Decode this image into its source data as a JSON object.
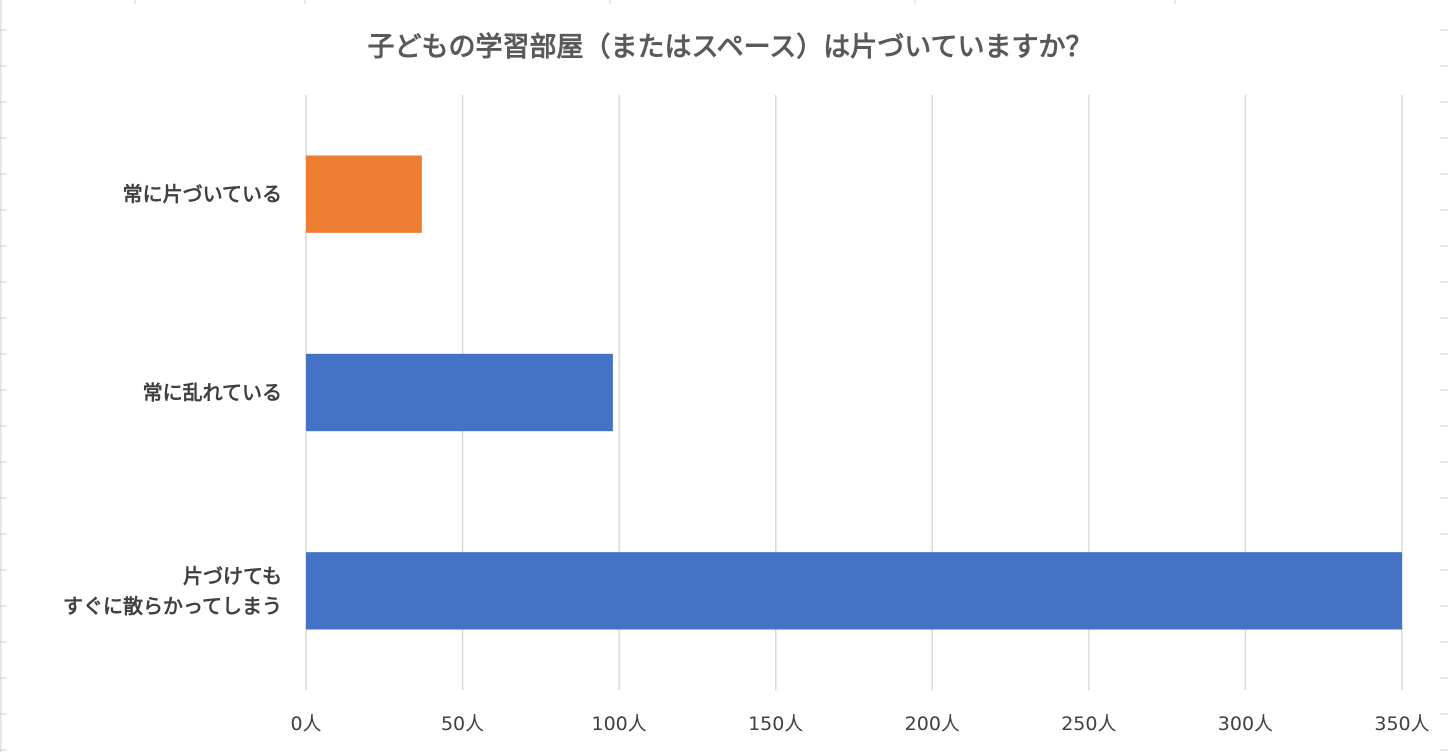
{
  "chart_data": {
    "type": "bar",
    "orientation": "horizontal",
    "title": "子どもの学習部屋（またはスペース）は片づいていますか？",
    "categories": [
      [
        "常に片づいている"
      ],
      [
        "常に乱れている"
      ],
      [
        "片づけても",
        "すぐに散らかってしまう"
      ]
    ],
    "values": [
      37,
      98,
      350
    ],
    "bar_colors": [
      "#ED7D31",
      "#4472C4",
      "#4472C4"
    ],
    "x_ticks": [
      "0人",
      "50人",
      "100人",
      "150人",
      "200人",
      "250人",
      "300人",
      "350人"
    ],
    "xlim": [
      0,
      350
    ],
    "grid": true,
    "legend": "none",
    "xlabel": "",
    "ylabel": ""
  }
}
